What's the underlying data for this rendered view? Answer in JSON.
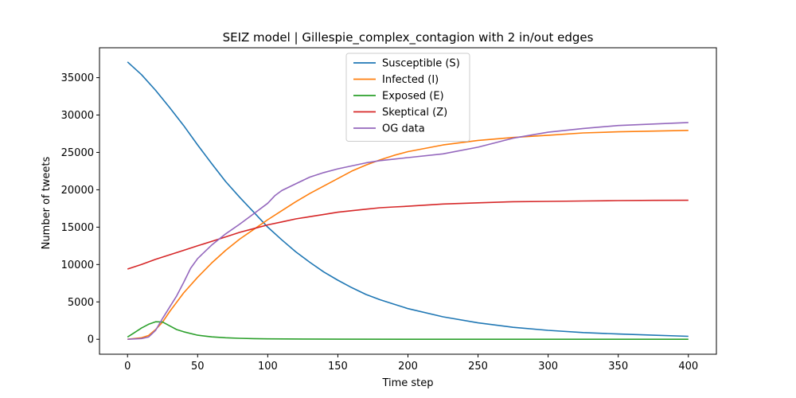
{
  "chart_data": {
    "type": "line",
    "title": "SEIZ model | Gillespie_complex_contagion with 2 in/out edges",
    "xlabel": "Time step",
    "ylabel": "Number of tweets",
    "xlim": [
      -20,
      420
    ],
    "ylim": [
      -2000,
      39000
    ],
    "xticks": [
      0,
      50,
      100,
      150,
      200,
      250,
      300,
      350,
      400
    ],
    "yticks": [
      0,
      5000,
      10000,
      15000,
      20000,
      25000,
      30000,
      35000
    ],
    "grid": false,
    "legend_position": "top-center",
    "series": [
      {
        "name": "Susceptible (S)",
        "color": "#1f77b4",
        "points": [
          [
            0,
            37100
          ],
          [
            10,
            35400
          ],
          [
            20,
            33300
          ],
          [
            30,
            31000
          ],
          [
            40,
            28600
          ],
          [
            50,
            26000
          ],
          [
            60,
            23500
          ],
          [
            70,
            21100
          ],
          [
            80,
            19000
          ],
          [
            90,
            17000
          ],
          [
            100,
            15000
          ],
          [
            110,
            13300
          ],
          [
            120,
            11700
          ],
          [
            130,
            10300
          ],
          [
            140,
            9000
          ],
          [
            150,
            7900
          ],
          [
            160,
            6900
          ],
          [
            170,
            6000
          ],
          [
            180,
            5300
          ],
          [
            190,
            4700
          ],
          [
            200,
            4100
          ],
          [
            225,
            3000
          ],
          [
            250,
            2200
          ],
          [
            275,
            1600
          ],
          [
            300,
            1200
          ],
          [
            325,
            900
          ],
          [
            350,
            700
          ],
          [
            375,
            550
          ],
          [
            400,
            400
          ]
        ]
      },
      {
        "name": "Infected (I)",
        "color": "#ff7f0e",
        "points": [
          [
            0,
            0
          ],
          [
            10,
            200
          ],
          [
            15,
            500
          ],
          [
            20,
            1300
          ],
          [
            25,
            2300
          ],
          [
            30,
            3700
          ],
          [
            40,
            6200
          ],
          [
            50,
            8300
          ],
          [
            60,
            10200
          ],
          [
            70,
            11900
          ],
          [
            80,
            13400
          ],
          [
            90,
            14700
          ],
          [
            100,
            16000
          ],
          [
            110,
            17200
          ],
          [
            120,
            18400
          ],
          [
            130,
            19500
          ],
          [
            140,
            20500
          ],
          [
            150,
            21500
          ],
          [
            160,
            22500
          ],
          [
            170,
            23300
          ],
          [
            180,
            24000
          ],
          [
            190,
            24600
          ],
          [
            200,
            25100
          ],
          [
            225,
            26000
          ],
          [
            250,
            26600
          ],
          [
            275,
            27000
          ],
          [
            300,
            27300
          ],
          [
            325,
            27600
          ],
          [
            350,
            27750
          ],
          [
            375,
            27850
          ],
          [
            400,
            27950
          ]
        ]
      },
      {
        "name": "Exposed (E)",
        "color": "#2ca02c",
        "points": [
          [
            0,
            300
          ],
          [
            5,
            900
          ],
          [
            10,
            1500
          ],
          [
            15,
            2000
          ],
          [
            20,
            2350
          ],
          [
            25,
            2300
          ],
          [
            30,
            1800
          ],
          [
            35,
            1300
          ],
          [
            40,
            1000
          ],
          [
            50,
            550
          ],
          [
            60,
            320
          ],
          [
            70,
            200
          ],
          [
            80,
            130
          ],
          [
            90,
            90
          ],
          [
            100,
            60
          ],
          [
            125,
            30
          ],
          [
            150,
            15
          ],
          [
            200,
            5
          ],
          [
            300,
            0
          ],
          [
            400,
            0
          ]
        ]
      },
      {
        "name": "Skeptical (Z)",
        "color": "#d62728",
        "points": [
          [
            0,
            9400
          ],
          [
            10,
            10000
          ],
          [
            20,
            10700
          ],
          [
            30,
            11300
          ],
          [
            40,
            11900
          ],
          [
            50,
            12500
          ],
          [
            60,
            13100
          ],
          [
            70,
            13700
          ],
          [
            80,
            14300
          ],
          [
            90,
            14800
          ],
          [
            100,
            15300
          ],
          [
            110,
            15700
          ],
          [
            120,
            16100
          ],
          [
            130,
            16400
          ],
          [
            140,
            16700
          ],
          [
            150,
            17000
          ],
          [
            160,
            17200
          ],
          [
            170,
            17400
          ],
          [
            180,
            17600
          ],
          [
            190,
            17700
          ],
          [
            200,
            17800
          ],
          [
            225,
            18100
          ],
          [
            250,
            18250
          ],
          [
            275,
            18400
          ],
          [
            300,
            18450
          ],
          [
            325,
            18500
          ],
          [
            350,
            18550
          ],
          [
            375,
            18580
          ],
          [
            400,
            18600
          ]
        ]
      },
      {
        "name": "OG data",
        "color": "#9467bd",
        "points": [
          [
            0,
            0
          ],
          [
            10,
            100
          ],
          [
            15,
            300
          ],
          [
            20,
            1200
          ],
          [
            25,
            2800
          ],
          [
            30,
            4300
          ],
          [
            35,
            5800
          ],
          [
            40,
            7600
          ],
          [
            45,
            9500
          ],
          [
            50,
            10800
          ],
          [
            60,
            12600
          ],
          [
            70,
            14100
          ],
          [
            80,
            15400
          ],
          [
            90,
            16800
          ],
          [
            100,
            18200
          ],
          [
            105,
            19200
          ],
          [
            110,
            19900
          ],
          [
            120,
            20800
          ],
          [
            130,
            21700
          ],
          [
            140,
            22300
          ],
          [
            150,
            22800
          ],
          [
            160,
            23200
          ],
          [
            170,
            23600
          ],
          [
            180,
            23900
          ],
          [
            190,
            24100
          ],
          [
            200,
            24300
          ],
          [
            225,
            24800
          ],
          [
            250,
            25700
          ],
          [
            275,
            26900
          ],
          [
            300,
            27700
          ],
          [
            325,
            28200
          ],
          [
            350,
            28600
          ],
          [
            375,
            28800
          ],
          [
            400,
            29000
          ]
        ]
      }
    ]
  }
}
